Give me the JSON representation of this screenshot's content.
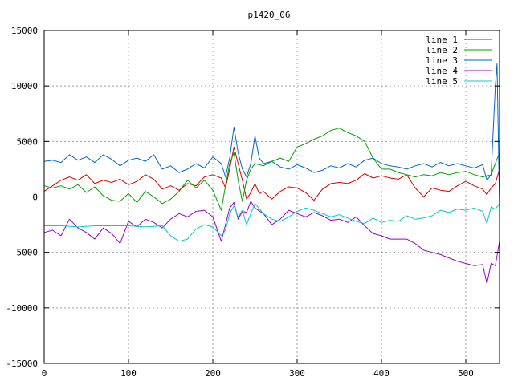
{
  "chart_data": {
    "type": "line",
    "title": "p1420_06",
    "xlabel": "",
    "ylabel": "",
    "xlim": [
      0,
      540
    ],
    "ylim": [
      -15000,
      15000
    ],
    "xticks": [
      0,
      100,
      200,
      300,
      400,
      500
    ],
    "yticks": [
      -15000,
      -10000,
      -5000,
      0,
      5000,
      10000,
      15000
    ],
    "grid": true,
    "legend_position": "top-right",
    "series": [
      {
        "name": "line 1",
        "color": "#dd0000",
        "points": [
          [
            0,
            500
          ],
          [
            10,
            1000
          ],
          [
            20,
            1500
          ],
          [
            30,
            1800
          ],
          [
            40,
            1500
          ],
          [
            50,
            2000
          ],
          [
            60,
            1200
          ],
          [
            70,
            1500
          ],
          [
            80,
            1300
          ],
          [
            90,
            1600
          ],
          [
            100,
            1100
          ],
          [
            110,
            1400
          ],
          [
            120,
            2000
          ],
          [
            130,
            1600
          ],
          [
            140,
            700
          ],
          [
            150,
            1000
          ],
          [
            160,
            600
          ],
          [
            170,
            1200
          ],
          [
            180,
            1000
          ],
          [
            190,
            1800
          ],
          [
            200,
            2000
          ],
          [
            210,
            1700
          ],
          [
            215,
            800
          ],
          [
            220,
            2500
          ],
          [
            225,
            4500
          ],
          [
            230,
            3000
          ],
          [
            235,
            1500
          ],
          [
            240,
            -200
          ],
          [
            245,
            400
          ],
          [
            250,
            1200
          ],
          [
            255,
            300
          ],
          [
            260,
            500
          ],
          [
            270,
            -200
          ],
          [
            280,
            500
          ],
          [
            290,
            900
          ],
          [
            300,
            800
          ],
          [
            310,
            400
          ],
          [
            320,
            -300
          ],
          [
            330,
            700
          ],
          [
            340,
            1200
          ],
          [
            350,
            1300
          ],
          [
            360,
            1200
          ],
          [
            370,
            1500
          ],
          [
            380,
            2100
          ],
          [
            390,
            1700
          ],
          [
            400,
            1900
          ],
          [
            410,
            1700
          ],
          [
            420,
            1600
          ],
          [
            430,
            2000
          ],
          [
            440,
            800
          ],
          [
            450,
            0
          ],
          [
            460,
            800
          ],
          [
            470,
            600
          ],
          [
            480,
            500
          ],
          [
            490,
            1000
          ],
          [
            500,
            1400
          ],
          [
            510,
            1000
          ],
          [
            520,
            700
          ],
          [
            525,
            200
          ],
          [
            530,
            800
          ],
          [
            535,
            1200
          ],
          [
            540,
            2500
          ]
        ]
      },
      {
        "name": "line 2",
        "color": "#00a000",
        "points": [
          [
            0,
            1000
          ],
          [
            10,
            800
          ],
          [
            20,
            1000
          ],
          [
            30,
            700
          ],
          [
            40,
            1100
          ],
          [
            50,
            400
          ],
          [
            60,
            900
          ],
          [
            70,
            100
          ],
          [
            80,
            -300
          ],
          [
            90,
            -400
          ],
          [
            100,
            300
          ],
          [
            110,
            -500
          ],
          [
            120,
            500
          ],
          [
            130,
            0
          ],
          [
            140,
            -600
          ],
          [
            150,
            -200
          ],
          [
            160,
            500
          ],
          [
            170,
            1500
          ],
          [
            180,
            800
          ],
          [
            190,
            1500
          ],
          [
            200,
            600
          ],
          [
            210,
            -1200
          ],
          [
            215,
            1000
          ],
          [
            220,
            3000
          ],
          [
            225,
            4000
          ],
          [
            230,
            1500
          ],
          [
            235,
            -400
          ],
          [
            240,
            1500
          ],
          [
            245,
            2500
          ],
          [
            250,
            3000
          ],
          [
            260,
            2800
          ],
          [
            270,
            3200
          ],
          [
            280,
            3500
          ],
          [
            290,
            3200
          ],
          [
            300,
            4500
          ],
          [
            310,
            4800
          ],
          [
            320,
            5200
          ],
          [
            330,
            5500
          ],
          [
            340,
            6000
          ],
          [
            350,
            6200
          ],
          [
            360,
            5800
          ],
          [
            370,
            5500
          ],
          [
            380,
            5000
          ],
          [
            390,
            3500
          ],
          [
            400,
            2500
          ],
          [
            410,
            2500
          ],
          [
            420,
            2200
          ],
          [
            430,
            2000
          ],
          [
            440,
            1800
          ],
          [
            450,
            2000
          ],
          [
            460,
            1900
          ],
          [
            470,
            2200
          ],
          [
            480,
            2000
          ],
          [
            490,
            2200
          ],
          [
            500,
            2300
          ],
          [
            510,
            2000
          ],
          [
            520,
            1800
          ],
          [
            530,
            2000
          ],
          [
            540,
            4000
          ]
        ]
      },
      {
        "name": "line 3",
        "color": "#0066cc",
        "points": [
          [
            0,
            3200
          ],
          [
            10,
            3300
          ],
          [
            20,
            3100
          ],
          [
            30,
            3800
          ],
          [
            40,
            3300
          ],
          [
            50,
            3600
          ],
          [
            60,
            3100
          ],
          [
            70,
            3800
          ],
          [
            80,
            3400
          ],
          [
            90,
            2800
          ],
          [
            100,
            3300
          ],
          [
            110,
            3500
          ],
          [
            120,
            3200
          ],
          [
            130,
            3800
          ],
          [
            140,
            2500
          ],
          [
            150,
            2800
          ],
          [
            160,
            2200
          ],
          [
            170,
            2500
          ],
          [
            180,
            3000
          ],
          [
            190,
            2600
          ],
          [
            200,
            3600
          ],
          [
            210,
            3000
          ],
          [
            215,
            1800
          ],
          [
            220,
            3500
          ],
          [
            225,
            6300
          ],
          [
            230,
            4000
          ],
          [
            235,
            2500
          ],
          [
            240,
            1800
          ],
          [
            245,
            3000
          ],
          [
            250,
            5500
          ],
          [
            255,
            3500
          ],
          [
            260,
            3000
          ],
          [
            270,
            3200
          ],
          [
            280,
            2700
          ],
          [
            290,
            2500
          ],
          [
            300,
            2900
          ],
          [
            310,
            2600
          ],
          [
            320,
            2200
          ],
          [
            330,
            2400
          ],
          [
            340,
            2800
          ],
          [
            350,
            2600
          ],
          [
            360,
            3000
          ],
          [
            370,
            2700
          ],
          [
            380,
            3300
          ],
          [
            390,
            3500
          ],
          [
            400,
            3000
          ],
          [
            410,
            2800
          ],
          [
            420,
            2700
          ],
          [
            430,
            2500
          ],
          [
            440,
            2800
          ],
          [
            450,
            3000
          ],
          [
            460,
            2700
          ],
          [
            470,
            3100
          ],
          [
            480,
            2800
          ],
          [
            490,
            3000
          ],
          [
            500,
            2800
          ],
          [
            510,
            2600
          ],
          [
            520,
            2900
          ],
          [
            525,
            1500
          ],
          [
            530,
            2000
          ],
          [
            535,
            10000
          ],
          [
            537,
            12000
          ],
          [
            540,
            -1000
          ]
        ]
      },
      {
        "name": "line 4",
        "color": "#9900cc",
        "points": [
          [
            0,
            -3200
          ],
          [
            10,
            -3000
          ],
          [
            20,
            -3500
          ],
          [
            30,
            -2000
          ],
          [
            40,
            -2800
          ],
          [
            50,
            -3200
          ],
          [
            60,
            -3800
          ],
          [
            70,
            -2800
          ],
          [
            80,
            -3300
          ],
          [
            90,
            -4200
          ],
          [
            100,
            -2200
          ],
          [
            110,
            -2700
          ],
          [
            120,
            -2000
          ],
          [
            130,
            -2300
          ],
          [
            140,
            -2800
          ],
          [
            150,
            -2000
          ],
          [
            160,
            -1500
          ],
          [
            170,
            -1800
          ],
          [
            180,
            -1300
          ],
          [
            190,
            -1200
          ],
          [
            200,
            -1800
          ],
          [
            210,
            -4000
          ],
          [
            215,
            -2500
          ],
          [
            220,
            -1000
          ],
          [
            225,
            -500
          ],
          [
            230,
            -2000
          ],
          [
            235,
            -1300
          ],
          [
            240,
            -1400
          ],
          [
            245,
            -400
          ],
          [
            250,
            -1000
          ],
          [
            260,
            -1500
          ],
          [
            270,
            -2500
          ],
          [
            280,
            -2000
          ],
          [
            290,
            -1200
          ],
          [
            300,
            -1500
          ],
          [
            310,
            -1800
          ],
          [
            320,
            -1400
          ],
          [
            330,
            -1700
          ],
          [
            340,
            -2100
          ],
          [
            350,
            -2000
          ],
          [
            360,
            -2300
          ],
          [
            370,
            -1800
          ],
          [
            380,
            -2600
          ],
          [
            390,
            -3300
          ],
          [
            400,
            -3500
          ],
          [
            410,
            -3800
          ],
          [
            420,
            -3800
          ],
          [
            430,
            -3800
          ],
          [
            440,
            -4200
          ],
          [
            450,
            -4800
          ],
          [
            460,
            -5000
          ],
          [
            470,
            -5200
          ],
          [
            480,
            -5500
          ],
          [
            490,
            -5800
          ],
          [
            500,
            -6000
          ],
          [
            510,
            -6200
          ],
          [
            520,
            -6100
          ],
          [
            525,
            -7800
          ],
          [
            530,
            -6000
          ],
          [
            535,
            -6200
          ],
          [
            540,
            -4000
          ]
        ]
      },
      {
        "name": "line 5",
        "color": "#00cccc",
        "points": [
          [
            0,
            -2600
          ],
          [
            20,
            -2600
          ],
          [
            40,
            -2700
          ],
          [
            60,
            -2600
          ],
          [
            80,
            -2600
          ],
          [
            100,
            -2600
          ],
          [
            120,
            -2700
          ],
          [
            140,
            -2600
          ],
          [
            150,
            -3500
          ],
          [
            160,
            -4000
          ],
          [
            170,
            -3800
          ],
          [
            180,
            -2900
          ],
          [
            190,
            -2500
          ],
          [
            200,
            -2700
          ],
          [
            210,
            -3500
          ],
          [
            215,
            -3000
          ],
          [
            220,
            -1500
          ],
          [
            225,
            -800
          ],
          [
            230,
            -1800
          ],
          [
            235,
            -1200
          ],
          [
            240,
            -2500
          ],
          [
            245,
            -1500
          ],
          [
            250,
            -600
          ],
          [
            260,
            -1500
          ],
          [
            270,
            -2000
          ],
          [
            280,
            -2200
          ],
          [
            290,
            -1800
          ],
          [
            300,
            -1300
          ],
          [
            310,
            -1000
          ],
          [
            320,
            -1200
          ],
          [
            330,
            -1500
          ],
          [
            340,
            -1800
          ],
          [
            350,
            -1600
          ],
          [
            360,
            -1900
          ],
          [
            370,
            -2200
          ],
          [
            380,
            -2400
          ],
          [
            390,
            -1900
          ],
          [
            400,
            -2300
          ],
          [
            410,
            -2100
          ],
          [
            420,
            -2200
          ],
          [
            430,
            -1700
          ],
          [
            440,
            -2000
          ],
          [
            450,
            -1900
          ],
          [
            460,
            -1700
          ],
          [
            470,
            -1200
          ],
          [
            480,
            -1400
          ],
          [
            490,
            -1100
          ],
          [
            500,
            -1200
          ],
          [
            510,
            -1000
          ],
          [
            520,
            -1300
          ],
          [
            525,
            -2400
          ],
          [
            530,
            -900
          ],
          [
            535,
            -1100
          ],
          [
            540,
            -600
          ]
        ]
      }
    ]
  }
}
